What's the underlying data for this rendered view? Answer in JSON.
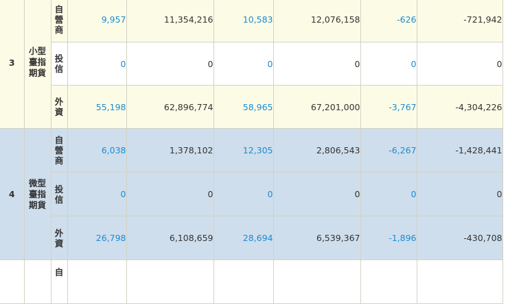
{
  "groups": [
    {
      "index": "3",
      "name": "小型臺指期貨",
      "name_lines": [
        "小型",
        "臺指",
        "期貨"
      ],
      "rows": [
        {
          "role": "自營商",
          "role_chars": [
            "自",
            "營",
            "商"
          ],
          "values": [
            "9,957",
            "11,354,216",
            "10,583",
            "12,076,158",
            "-626",
            "-721,942"
          ]
        },
        {
          "role": "投信",
          "role_chars": [
            "投",
            "信"
          ],
          "values": [
            "0",
            "0",
            "0",
            "0",
            "0",
            "0"
          ]
        },
        {
          "role": "外資",
          "role_chars": [
            "外",
            "資"
          ],
          "values": [
            "55,198",
            "62,896,774",
            "58,965",
            "67,201,000",
            "-3,767",
            "-4,304,226"
          ]
        }
      ]
    },
    {
      "index": "4",
      "name": "微型臺指期貨",
      "name_lines": [
        "微型",
        "臺指",
        "期貨"
      ],
      "rows": [
        {
          "role": "自營商",
          "role_chars": [
            "自",
            "營",
            "商"
          ],
          "values": [
            "6,038",
            "1,378,102",
            "12,305",
            "2,806,543",
            "-6,267",
            "-1,428,441"
          ]
        },
        {
          "role": "投信",
          "role_chars": [
            "投",
            "信"
          ],
          "values": [
            "0",
            "0",
            "0",
            "0",
            "0",
            "0"
          ]
        },
        {
          "role": "外資",
          "role_chars": [
            "外",
            "資"
          ],
          "values": [
            "26,798",
            "6,108,659",
            "28,694",
            "6,539,367",
            "-1,896",
            "-430,708"
          ]
        }
      ]
    }
  ],
  "partial_row": {
    "role_char": "自"
  },
  "colors": {
    "link": "#1a8bd2",
    "group_odd_bg": "#fcfbe6",
    "group_even_bg": "#cfdeec",
    "border": "#d2d2c4"
  }
}
